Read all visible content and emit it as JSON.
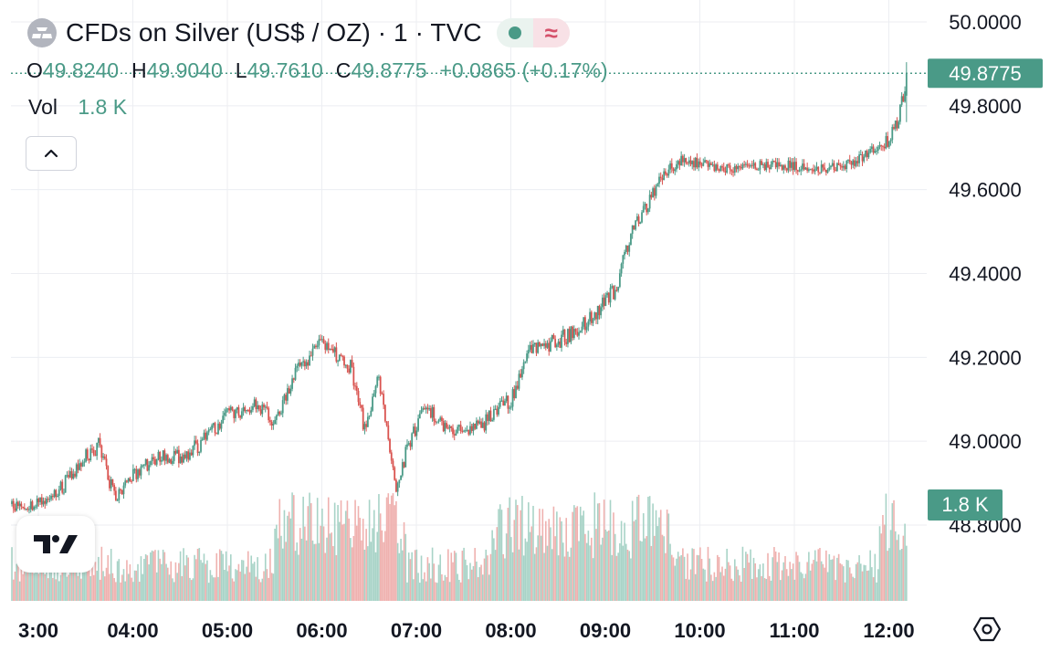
{
  "header": {
    "title": "CFDs on Silver (US$ / OZ) · 1 · TVC",
    "approx_symbol": "≈"
  },
  "legend": {
    "o_label": "O",
    "o_value": "49.8240",
    "h_label": "H",
    "h_value": "49.9040",
    "l_label": "L",
    "l_value": "49.7610",
    "c_label": "C",
    "c_value": "49.8775",
    "change": "+0.0865 (+0.17%)",
    "vol_label": "Vol",
    "vol_value": "1.8 K"
  },
  "colors": {
    "up": "#4a9a87",
    "down": "#d9534f",
    "grid": "#eceef2",
    "axis_text": "#131722",
    "badge": "#4a9a87"
  },
  "icons": [
    "silver-logo-icon",
    "live-dot-icon",
    "chevron-up-icon",
    "tradingview-logo-icon",
    "settings-icon"
  ],
  "chart_data": {
    "type": "candlestick",
    "interval": "1 minute",
    "y_ticks": [
      "50.0000",
      "49.8000",
      "49.6000",
      "49.4000",
      "49.2000",
      "49.0000",
      "48.8000"
    ],
    "x_ticks": [
      "3:00",
      "04:00",
      "05:00",
      "06:00",
      "07:00",
      "08:00",
      "09:00",
      "10:00",
      "11:00",
      "12:00"
    ],
    "ylim": [
      48.8,
      50.0
    ],
    "last_price_label": "49.8775",
    "last_price": 49.8775,
    "volume_label": "1.8 K",
    "volume_max": 1.8,
    "path": [
      [
        3.0,
        48.85
      ],
      [
        3.25,
        48.89
      ],
      [
        3.5,
        48.96
      ],
      [
        3.65,
        48.99
      ],
      [
        3.8,
        48.87
      ],
      [
        4.0,
        48.92
      ],
      [
        4.3,
        48.96
      ],
      [
        4.6,
        48.97
      ],
      [
        5.0,
        49.06
      ],
      [
        5.3,
        49.09
      ],
      [
        5.5,
        49.05
      ],
      [
        5.75,
        49.18
      ],
      [
        6.0,
        49.23
      ],
      [
        6.3,
        49.18
      ],
      [
        6.45,
        49.03
      ],
      [
        6.6,
        49.15
      ],
      [
        6.7,
        49.0
      ],
      [
        6.8,
        48.88
      ],
      [
        6.9,
        48.99
      ],
      [
        7.1,
        49.08
      ],
      [
        7.4,
        49.02
      ],
      [
        7.7,
        49.04
      ],
      [
        8.0,
        49.1
      ],
      [
        8.2,
        49.22
      ],
      [
        8.5,
        49.24
      ],
      [
        8.8,
        49.28
      ],
      [
        9.1,
        49.36
      ],
      [
        9.3,
        49.51
      ],
      [
        9.55,
        49.61
      ],
      [
        9.8,
        49.67
      ],
      [
        10.3,
        49.65
      ],
      [
        10.8,
        49.66
      ],
      [
        11.3,
        49.65
      ],
      [
        11.6,
        49.66
      ],
      [
        11.85,
        49.7
      ],
      [
        12.0,
        49.72
      ],
      [
        12.1,
        49.77
      ],
      [
        12.2,
        49.8775
      ]
    ]
  }
}
